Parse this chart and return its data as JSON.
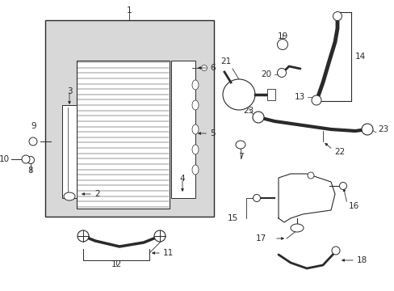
{
  "bg_color": "#ffffff",
  "box_bg": "#d8d8d8",
  "line_color": "#2a2a2a",
  "lw": 0.9
}
